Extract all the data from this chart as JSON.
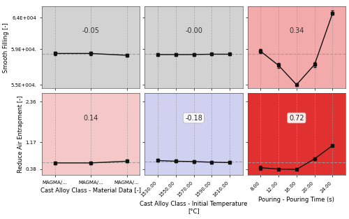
{
  "row_labels": [
    "Smooth Filling [-]",
    "Reduce Air Entrapment [-]"
  ],
  "col_xlabels": [
    "Cast Alloy Class - Material Data [-]",
    "Cast Alloy Class - Initial Temperature\n[°C]",
    "Pouring - Pouring Time (s)"
  ],
  "bg_colors": [
    [
      "#d2d2d2",
      "#d2d2d2",
      "#f2aaaa"
    ],
    [
      "#f5c8c8",
      "#d0d0f0",
      "#e03030"
    ]
  ],
  "correlation_values": [
    [
      "-0.05",
      "-0.00",
      "0.34"
    ],
    [
      "0.14",
      "-0.18",
      "0.72"
    ]
  ],
  "corr_has_box": [
    [
      false,
      false,
      false
    ],
    [
      false,
      true,
      true
    ]
  ],
  "col0_xticks": [
    "MAGMA/...",
    "MAGMA/...",
    "MAGMA/..."
  ],
  "col0_xvals": [
    0,
    1,
    2
  ],
  "col1_xvals": [
    1530,
    1550,
    1570,
    1590,
    1610
  ],
  "col2_xvals": [
    8,
    12,
    16,
    20,
    24
  ],
  "row0_ylim": [
    54500,
    65500
  ],
  "row0_yticks": [
    55000,
    59800,
    64000
  ],
  "row0_yticklabels": [
    "5.5E+004.",
    "5.9E+004.",
    "6.4E+004"
  ],
  "row1_ylim": [
    0.2,
    2.6
  ],
  "row1_yticks": [
    0.38,
    1.17,
    2.36
  ],
  "row1_yticklabels": [
    "0.38",
    "1.17",
    "2.36"
  ],
  "smooth_filling": {
    "col0": {
      "y": [
        59200,
        59200,
        58950
      ],
      "yerr_lo": [
        200,
        200,
        200
      ],
      "yerr_hi": [
        200,
        200,
        200
      ],
      "ref": 59100
    },
    "col1": {
      "y": [
        59050,
        59050,
        59050,
        59100,
        59100
      ],
      "yerr_lo": [
        150,
        150,
        150,
        150,
        150
      ],
      "yerr_hi": [
        150,
        150,
        150,
        150,
        150
      ],
      "ref": 59100
    },
    "col2": {
      "y": [
        59500,
        57600,
        55000,
        57700,
        64600
      ],
      "yerr_lo": [
        300,
        300,
        200,
        300,
        200
      ],
      "yerr_hi": [
        300,
        300,
        200,
        300,
        400
      ],
      "ref": 59100
    }
  },
  "air_entrapment": {
    "col0": {
      "y": [
        0.56,
        0.56,
        0.61
      ],
      "yerr_lo": [
        0.04,
        0.04,
        0.04
      ],
      "yerr_hi": [
        0.04,
        0.04,
        0.04
      ],
      "ref": 0.575
    },
    "col1": {
      "y": [
        0.63,
        0.61,
        0.6,
        0.58,
        0.57
      ],
      "yerr_lo": [
        0.04,
        0.04,
        0.04,
        0.04,
        0.04
      ],
      "yerr_hi": [
        0.04,
        0.04,
        0.04,
        0.04,
        0.04
      ],
      "ref": 0.6
    },
    "col2": {
      "y": [
        0.42,
        0.38,
        0.37,
        0.68,
        1.07
      ],
      "yerr_lo": [
        0.06,
        0.04,
        0.04,
        0.04,
        0.04
      ],
      "yerr_hi": [
        0.06,
        0.04,
        0.04,
        0.04,
        0.04
      ],
      "ref": 0.575
    }
  },
  "line_color": "#111111",
  "ref_line_color": "#999999",
  "marker": "s",
  "markersize": 3,
  "linewidth": 1.0,
  "ref_linewidth": 0.8,
  "corr_fontsize": 7,
  "axis_fontsize": 5.5,
  "label_fontsize": 6,
  "tick_label_fontsize": 5
}
